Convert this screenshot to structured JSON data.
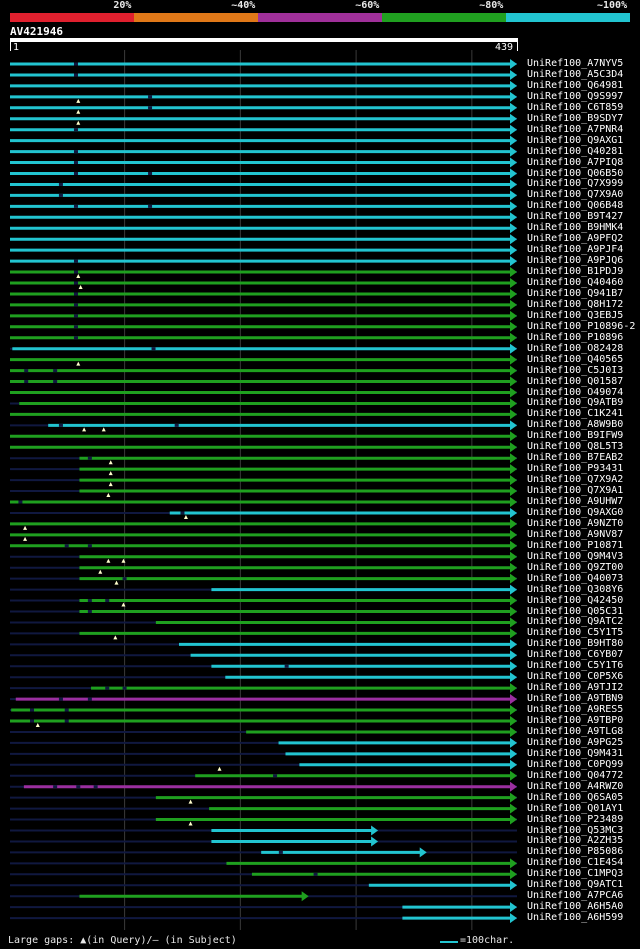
{
  "legend": [
    {
      "label": "20%",
      "color": "#e0202e"
    },
    {
      "label": "~40%",
      "color": "#e07818"
    },
    {
      "label": "~60%",
      "color": "#a0309a"
    },
    {
      "label": "~80%",
      "color": "#20a020"
    },
    {
      "label": "~100%",
      "color": "#22c4d0"
    }
  ],
  "query": {
    "id": "AV421946",
    "start": "1",
    "end": "439"
  },
  "footer": {
    "gaps": "Large gaps: ▲(in Query)/– (in Subject)",
    "scale": "=100char."
  },
  "chart_data": {
    "type": "alignment",
    "query_length": 439,
    "xlim": [
      1,
      439
    ],
    "colors": {
      "cyan": "#22c4d0",
      "green": "#1fa01f",
      "purple": "#9b2fa0",
      "navy": "#101840"
    },
    "hits": [
      {
        "name": "UniRef100_A7NYV5",
        "start": 1,
        "end": 439,
        "color": "cyan",
        "gaps": [
          58
        ]
      },
      {
        "name": "UniRef100_A5C3D4",
        "start": 1,
        "end": 439,
        "color": "cyan",
        "gaps": [
          58
        ]
      },
      {
        "name": "UniRef100_Q64981",
        "start": 1,
        "end": 439,
        "color": "cyan",
        "gaps": []
      },
      {
        "name": "UniRef100_Q9S997",
        "start": 1,
        "end": 439,
        "color": "cyan",
        "gaps": [
          122
        ]
      },
      {
        "name": "UniRef100_C6T859",
        "start": 1,
        "end": 439,
        "color": "cyan",
        "gaps": [
          122
        ]
      },
      {
        "name": "UniRef100_B9SDY7",
        "start": 1,
        "end": 439,
        "color": "cyan",
        "gaps": []
      },
      {
        "name": "UniRef100_A7PNR4",
        "start": 1,
        "end": 439,
        "color": "cyan",
        "gaps": [
          58
        ]
      },
      {
        "name": "UniRef100_Q9AXG1",
        "start": 1,
        "end": 439,
        "color": "cyan",
        "gaps": []
      },
      {
        "name": "UniRef100_Q40281",
        "start": 1,
        "end": 439,
        "color": "cyan",
        "gaps": [
          58
        ]
      },
      {
        "name": "UniRef100_A7PIQ8",
        "start": 1,
        "end": 439,
        "color": "cyan",
        "gaps": [
          58
        ]
      },
      {
        "name": "UniRef100_Q06B50",
        "start": 1,
        "end": 439,
        "color": "cyan",
        "gaps": [
          58,
          122
        ]
      },
      {
        "name": "UniRef100_Q7X999",
        "start": 1,
        "end": 439,
        "color": "cyan",
        "gaps": [
          45
        ]
      },
      {
        "name": "UniRef100_Q7X9A0",
        "start": 1,
        "end": 439,
        "color": "cyan",
        "gaps": [
          45
        ]
      },
      {
        "name": "UniRef100_Q06B48",
        "start": 1,
        "end": 439,
        "color": "cyan",
        "gaps": [
          58,
          122
        ]
      },
      {
        "name": "UniRef100_B9T427",
        "start": 1,
        "end": 439,
        "color": "cyan",
        "gaps": []
      },
      {
        "name": "UniRef100_B9HMK4",
        "start": 1,
        "end": 439,
        "color": "cyan",
        "gaps": []
      },
      {
        "name": "UniRef100_A9PFQ2",
        "start": 1,
        "end": 439,
        "color": "cyan",
        "gaps": []
      },
      {
        "name": "UniRef100_A9PJF4",
        "start": 1,
        "end": 439,
        "color": "cyan",
        "gaps": []
      },
      {
        "name": "UniRef100_A9PJQ6",
        "start": 1,
        "end": 439,
        "color": "cyan",
        "gaps": [
          58
        ]
      },
      {
        "name": "UniRef100_B1PDJ9",
        "start": 1,
        "end": 439,
        "color": "green",
        "gaps": [
          58
        ]
      },
      {
        "name": "UniRef100_Q40460",
        "start": 1,
        "end": 439,
        "color": "green",
        "gaps": [
          58
        ]
      },
      {
        "name": "UniRef100_Q941B7",
        "start": 1,
        "end": 439,
        "color": "green",
        "gaps": [
          58
        ]
      },
      {
        "name": "UniRef100_Q8H172",
        "start": 1,
        "end": 439,
        "color": "green",
        "gaps": [
          58
        ]
      },
      {
        "name": "UniRef100_Q3EBJ5",
        "start": 1,
        "end": 439,
        "color": "green",
        "gaps": [
          58
        ]
      },
      {
        "name": "UniRef100_P10896-2",
        "start": 1,
        "end": 439,
        "color": "green",
        "gaps": [
          58
        ]
      },
      {
        "name": "UniRef100_P10896",
        "start": 1,
        "end": 439,
        "color": "green",
        "gaps": [
          58
        ]
      },
      {
        "name": "UniRef100_O82428",
        "start": 3,
        "end": 439,
        "color": "cyan",
        "gaps": [
          125
        ]
      },
      {
        "name": "UniRef100_Q40565",
        "start": 1,
        "end": 439,
        "color": "green",
        "gaps": []
      },
      {
        "name": "UniRef100_C5J0I3",
        "start": 1,
        "end": 439,
        "color": "green",
        "gaps": [
          15,
          40
        ]
      },
      {
        "name": "UniRef100_Q01587",
        "start": 1,
        "end": 439,
        "color": "green",
        "gaps": [
          15,
          40
        ]
      },
      {
        "name": "UniRef100_O49074",
        "start": 1,
        "end": 439,
        "color": "green",
        "gaps": []
      },
      {
        "name": "UniRef100_Q9ATB9",
        "start": 9,
        "end": 439,
        "color": "green",
        "gaps": []
      },
      {
        "name": "UniRef100_C1K241",
        "start": 1,
        "end": 439,
        "color": "green",
        "gaps": []
      },
      {
        "name": "UniRef100_A8W9B0",
        "start": 34,
        "end": 439,
        "color": "cyan",
        "gaps": [
          45,
          145
        ]
      },
      {
        "name": "UniRef100_B9IFW9",
        "start": 1,
        "end": 439,
        "color": "green",
        "gaps": []
      },
      {
        "name": "UniRef100_Q8L5T3",
        "start": 1,
        "end": 439,
        "color": "green",
        "gaps": []
      },
      {
        "name": "UniRef100_B7EAB2",
        "start": 61,
        "end": 439,
        "color": "green",
        "gaps": [
          70
        ]
      },
      {
        "name": "UniRef100_P93431",
        "start": 61,
        "end": 439,
        "color": "green",
        "gaps": []
      },
      {
        "name": "UniRef100_Q7X9A2",
        "start": 61,
        "end": 439,
        "color": "green",
        "gaps": []
      },
      {
        "name": "UniRef100_Q7X9A1",
        "start": 61,
        "end": 439,
        "color": "green",
        "gaps": []
      },
      {
        "name": "UniRef100_A9UHW7",
        "start": 1,
        "end": 439,
        "color": "green",
        "gaps": [
          10
        ]
      },
      {
        "name": "UniRef100_Q9AXG0",
        "start": 139,
        "end": 439,
        "color": "cyan",
        "gaps": [
          150
        ]
      },
      {
        "name": "UniRef100_A9NZT0",
        "start": 1,
        "end": 439,
        "color": "green",
        "gaps": []
      },
      {
        "name": "UniRef100_A9NV87",
        "start": 1,
        "end": 439,
        "color": "green",
        "gaps": []
      },
      {
        "name": "UniRef100_P10871",
        "start": 1,
        "end": 439,
        "color": "green",
        "gaps": [
          50,
          70
        ]
      },
      {
        "name": "UniRef100_Q9M4V3",
        "start": 61,
        "end": 439,
        "color": "green",
        "gaps": []
      },
      {
        "name": "UniRef100_Q9ZT00",
        "start": 61,
        "end": 439,
        "color": "green",
        "gaps": []
      },
      {
        "name": "UniRef100_Q40073",
        "start": 61,
        "end": 439,
        "color": "green",
        "gaps": [
          100
        ]
      },
      {
        "name": "UniRef100_Q308Y6",
        "start": 175,
        "end": 439,
        "color": "cyan",
        "gaps": []
      },
      {
        "name": "UniRef100_Q42450",
        "start": 61,
        "end": 439,
        "color": "green",
        "gaps": [
          70,
          85
        ]
      },
      {
        "name": "UniRef100_Q05C31",
        "start": 61,
        "end": 439,
        "color": "green",
        "gaps": [
          70
        ]
      },
      {
        "name": "UniRef100_Q9ATC2",
        "start": 127,
        "end": 439,
        "color": "green",
        "gaps": []
      },
      {
        "name": "UniRef100_C5Y1T5",
        "start": 61,
        "end": 439,
        "color": "green",
        "gaps": []
      },
      {
        "name": "UniRef100_B9HT80",
        "start": 147,
        "end": 439,
        "color": "cyan",
        "gaps": []
      },
      {
        "name": "UniRef100_C6YB07",
        "start": 157,
        "end": 439,
        "color": "cyan",
        "gaps": []
      },
      {
        "name": "UniRef100_C5Y1T6",
        "start": 175,
        "end": 439,
        "color": "cyan",
        "gaps": [
          240
        ]
      },
      {
        "name": "UniRef100_C0P5X6",
        "start": 187,
        "end": 439,
        "color": "cyan",
        "gaps": []
      },
      {
        "name": "UniRef100_A9TJI2",
        "start": 71,
        "end": 439,
        "color": "green",
        "gaps": [
          85,
          100
        ]
      },
      {
        "name": "UniRef100_A9TBN9",
        "start": 6,
        "end": 439,
        "color": "purple",
        "gaps": [
          45,
          70
        ]
      },
      {
        "name": "UniRef100_A9RES5",
        "start": 2,
        "end": 439,
        "color": "green",
        "gaps": [
          20,
          50
        ]
      },
      {
        "name": "UniRef100_A9TBP0",
        "start": 1,
        "end": 439,
        "color": "green",
        "gaps": [
          20,
          50
        ]
      },
      {
        "name": "UniRef100_A9TLG8",
        "start": 205,
        "end": 439,
        "color": "green",
        "gaps": []
      },
      {
        "name": "UniRef100_A9PG25",
        "start": 233,
        "end": 439,
        "color": "cyan",
        "gaps": []
      },
      {
        "name": "UniRef100_Q9M431",
        "start": 239,
        "end": 439,
        "color": "cyan",
        "gaps": []
      },
      {
        "name": "UniRef100_C0PQ99",
        "start": 251,
        "end": 439,
        "color": "cyan",
        "gaps": []
      },
      {
        "name": "UniRef100_Q04772",
        "start": 161,
        "end": 439,
        "color": "green",
        "gaps": [
          230
        ]
      },
      {
        "name": "UniRef100_A4RWZ0",
        "start": 13,
        "end": 439,
        "color": "purple",
        "gaps": [
          40,
          60,
          75
        ]
      },
      {
        "name": "UniRef100_Q6SA05",
        "start": 127,
        "end": 439,
        "color": "green",
        "gaps": []
      },
      {
        "name": "UniRef100_Q01AY1",
        "start": 173,
        "end": 439,
        "color": "green",
        "gaps": []
      },
      {
        "name": "UniRef100_P23489",
        "start": 127,
        "end": 439,
        "color": "green",
        "gaps": []
      },
      {
        "name": "UniRef100_Q53MC3",
        "start": 175,
        "end": 319,
        "color": "cyan",
        "gaps": []
      },
      {
        "name": "UniRef100_A2ZH35",
        "start": 175,
        "end": 319,
        "color": "cyan",
        "gaps": []
      },
      {
        "name": "UniRef100_P85086",
        "start": 218,
        "end": 361,
        "color": "cyan",
        "gaps": [
          235
        ]
      },
      {
        "name": "UniRef100_C1E4S4",
        "start": 188,
        "end": 439,
        "color": "green",
        "gaps": []
      },
      {
        "name": "UniRef100_C1MPQ3",
        "start": 210,
        "end": 439,
        "color": "green",
        "gaps": [
          265
        ]
      },
      {
        "name": "UniRef100_Q9ATC1",
        "start": 311,
        "end": 439,
        "color": "cyan",
        "gaps": []
      },
      {
        "name": "UniRef100_A7PCA6",
        "start": 61,
        "end": 259,
        "color": "green",
        "gaps": []
      },
      {
        "name": "UniRef100_A6H5A0",
        "start": 340,
        "end": 439,
        "color": "cyan",
        "gaps": []
      },
      {
        "name": "UniRef100_A6H599",
        "start": 340,
        "end": 439,
        "color": "cyan",
        "gaps": []
      }
    ],
    "query_gap_markers": [
      {
        "row": 3,
        "x": 60
      },
      {
        "row": 4,
        "x": 60
      },
      {
        "row": 5,
        "x": 60
      },
      {
        "row": 19,
        "x": 60
      },
      {
        "row": 20,
        "x": 62
      },
      {
        "row": 27,
        "x": 60
      },
      {
        "row": 33,
        "x": 65
      },
      {
        "row": 33,
        "x": 82
      },
      {
        "row": 36,
        "x": 88
      },
      {
        "row": 37,
        "x": 88
      },
      {
        "row": 38,
        "x": 88
      },
      {
        "row": 39,
        "x": 86
      },
      {
        "row": 41,
        "x": 153
      },
      {
        "row": 42,
        "x": 14
      },
      {
        "row": 43,
        "x": 14
      },
      {
        "row": 45,
        "x": 86
      },
      {
        "row": 45,
        "x": 99
      },
      {
        "row": 46,
        "x": 79
      },
      {
        "row": 47,
        "x": 93
      },
      {
        "row": 49,
        "x": 99
      },
      {
        "row": 52,
        "x": 92
      },
      {
        "row": 60,
        "x": 25
      },
      {
        "row": 64,
        "x": 182
      },
      {
        "row": 67,
        "x": 157
      },
      {
        "row": 69,
        "x": 157
      }
    ]
  }
}
